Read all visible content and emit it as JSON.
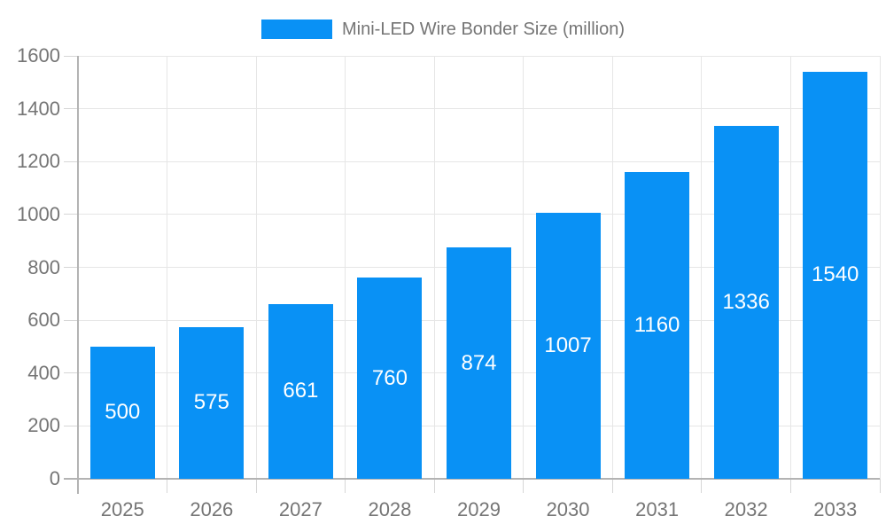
{
  "chart_data": {
    "type": "bar",
    "title": "Mini-LED Wire Bonder Size (million)",
    "categories": [
      "2025",
      "2026",
      "2027",
      "2028",
      "2029",
      "2030",
      "2031",
      "2032",
      "2033"
    ],
    "values": [
      500,
      575,
      661,
      760,
      874,
      1007,
      1160,
      1336,
      1540
    ],
    "xlabel": "",
    "ylabel": "",
    "ylim": [
      0,
      1600
    ],
    "ytick_step": 200,
    "yticks": [
      "0",
      "200",
      "400",
      "600",
      "800",
      "1000",
      "1200",
      "1400",
      "1600"
    ],
    "grid": true,
    "legend_position": "top-center",
    "bar_color": "#0991f5",
    "bar_label_color": "#ffffff",
    "axis_text_color": "#757575",
    "legend_text_color": "#757575",
    "grid_color": "#e6e6e6",
    "tick_color": "#d6d6d6",
    "axis_line_color": "#b3b3b3",
    "background_color": "#ffffff"
  }
}
